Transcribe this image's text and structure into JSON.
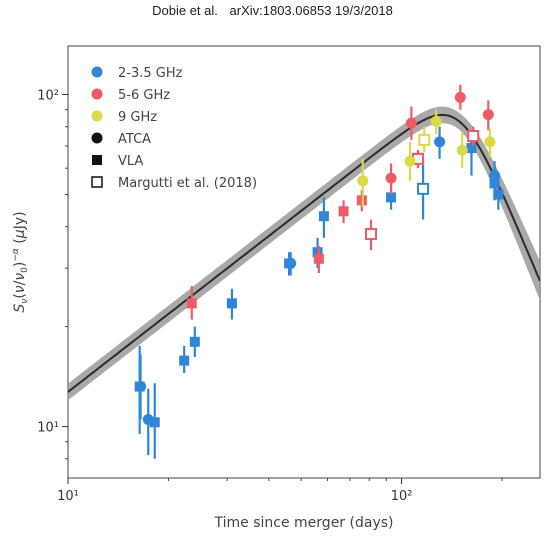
{
  "header": {
    "authors": "Dobie et al.",
    "reference": "arXiv:1803.06853 19/3/2018"
  },
  "chart_data": {
    "type": "scatter",
    "title": "",
    "xlabel": "Time since merger (days)",
    "ylabel": "Sν(ν/ν0)⁻ᵅ (μJy)",
    "xscale": "log",
    "yscale": "log",
    "xlim": [
      10,
      260
    ],
    "ylim": [
      7,
      140
    ],
    "x_ticks": [
      {
        "value": 10,
        "label": "10¹"
      },
      {
        "value": 100,
        "label": "10²"
      }
    ],
    "y_ticks": [
      {
        "value": 10,
        "label": "10¹"
      },
      {
        "value": 100,
        "label": "10²"
      }
    ],
    "legend_position": "top-left",
    "colors": {
      "blue": "#2f86d6",
      "red": "#ec5b66",
      "yellow": "#dcd84a",
      "model": "#2b2b2b",
      "band": "#9a9a9a"
    },
    "legend": [
      {
        "label": "2-3.5 GHz",
        "marker": "circle",
        "color": "#2f86d6"
      },
      {
        "label": "5-6 GHz",
        "marker": "circle",
        "color": "#ec5b66"
      },
      {
        "label": "9 GHz",
        "marker": "circle",
        "color": "#dcd84a"
      },
      {
        "label": "ATCA",
        "marker": "circle",
        "color": "#111111"
      },
      {
        "label": "VLA",
        "marker": "square",
        "color": "#111111"
      },
      {
        "label": "Margutti et al. (2018)",
        "marker": "open-square",
        "color": "#111111"
      }
    ],
    "model": {
      "peak_time": 149,
      "peak_flux": 83,
      "rise_index": 0.78,
      "decay_index": -2.4,
      "band_halfwidth_dex": 0.025,
      "band_halfwidth_dex_decay": 0.06
    },
    "series": [
      {
        "band": "2-3.5 GHz",
        "telescope": "ATCA",
        "points": [
          {
            "x": 16.5,
            "y": 13.2,
            "ylo": 10.5,
            "yhi": 16.5
          },
          {
            "x": 17.4,
            "y": 10.5,
            "ylo": 8.2,
            "yhi": 13.0
          },
          {
            "x": 46.5,
            "y": 31.0,
            "ylo": 28.5,
            "yhi": 33.5
          },
          {
            "x": 130.0,
            "y": 72.0,
            "ylo": 64.0,
            "yhi": 80.0
          },
          {
            "x": 190.0,
            "y": 57.0,
            "ylo": 52.0,
            "yhi": 63.0
          }
        ]
      },
      {
        "band": "2-3.5 GHz",
        "telescope": "VLA",
        "points": [
          {
            "x": 16.4,
            "y": 13.2,
            "ylo": 9.5,
            "yhi": 17.5
          },
          {
            "x": 18.2,
            "y": 10.3,
            "ylo": 8.0,
            "yhi": 13.5
          },
          {
            "x": 22.3,
            "y": 15.8,
            "ylo": 14.5,
            "yhi": 17.5
          },
          {
            "x": 24.0,
            "y": 18.0,
            "ylo": 16.2,
            "yhi": 20.0
          },
          {
            "x": 31.0,
            "y": 23.5,
            "ylo": 21.0,
            "yhi": 26.0
          },
          {
            "x": 46.0,
            "y": 31.0,
            "ylo": 28.5,
            "yhi": 33.5
          },
          {
            "x": 56.0,
            "y": 33.5,
            "ylo": 30.0,
            "yhi": 37.0
          },
          {
            "x": 58.5,
            "y": 43.0,
            "ylo": 37.0,
            "yhi": 49.0
          },
          {
            "x": 93.0,
            "y": 49.0,
            "ylo": 45.0,
            "yhi": 53.5
          },
          {
            "x": 162.0,
            "y": 69.0,
            "ylo": 57.0,
            "yhi": 78.0
          },
          {
            "x": 190.0,
            "y": 54.0,
            "ylo": 48.0,
            "yhi": 61.0
          },
          {
            "x": 195.0,
            "y": 50.0,
            "ylo": 45.0,
            "yhi": 55.0
          }
        ]
      },
      {
        "band": "2-3.5 GHz",
        "telescope": "Margutti et al. (2018)",
        "points": [
          {
            "x": 116.0,
            "y": 52.0,
            "ylo": 42.0,
            "yhi": 64.0
          }
        ]
      },
      {
        "band": "5-6 GHz",
        "telescope": "ATCA",
        "points": [
          {
            "x": 93.0,
            "y": 56.0,
            "ylo": 50.0,
            "yhi": 62.0
          },
          {
            "x": 107.0,
            "y": 82.0,
            "ylo": 73.0,
            "yhi": 92.0
          },
          {
            "x": 150.0,
            "y": 98.0,
            "ylo": 90.0,
            "yhi": 107.0
          },
          {
            "x": 182.0,
            "y": 87.0,
            "ylo": 78.0,
            "yhi": 96.0
          }
        ]
      },
      {
        "band": "5-6 GHz",
        "telescope": "VLA",
        "points": [
          {
            "x": 23.5,
            "y": 23.5,
            "ylo": 21.0,
            "yhi": 26.5
          },
          {
            "x": 56.5,
            "y": 32.0,
            "ylo": 29.0,
            "yhi": 35.0
          },
          {
            "x": 67.0,
            "y": 44.5,
            "ylo": 41.0,
            "yhi": 48.0
          },
          {
            "x": 76.0,
            "y": 48.0,
            "ylo": 44.5,
            "yhi": 51.5
          }
        ]
      },
      {
        "band": "5-6 GHz",
        "telescope": "Margutti et al. (2018)",
        "points": [
          {
            "x": 81.0,
            "y": 38.0,
            "ylo": 34.0,
            "yhi": 42.0
          },
          {
            "x": 112.0,
            "y": 64.0,
            "ylo": 60.0,
            "yhi": 68.0
          },
          {
            "x": 164.0,
            "y": 75.0,
            "ylo": 70.0,
            "yhi": 80.0
          }
        ]
      },
      {
        "band": "9 GHz",
        "telescope": "ATCA",
        "points": [
          {
            "x": 76.5,
            "y": 55.0,
            "ylo": 46.0,
            "yhi": 64.0
          },
          {
            "x": 106.0,
            "y": 63.0,
            "ylo": 55.0,
            "yhi": 72.0
          },
          {
            "x": 127.0,
            "y": 83.0,
            "ylo": 76.0,
            "yhi": 90.0
          },
          {
            "x": 152.0,
            "y": 68.0,
            "ylo": 60.0,
            "yhi": 77.0
          },
          {
            "x": 184.0,
            "y": 72.0,
            "ylo": 65.0,
            "yhi": 79.0
          }
        ]
      },
      {
        "band": "9 GHz",
        "telescope": "Margutti et al. (2018)",
        "points": [
          {
            "x": 117.0,
            "y": 73.0,
            "ylo": 67.0,
            "yhi": 80.0
          }
        ]
      }
    ]
  }
}
